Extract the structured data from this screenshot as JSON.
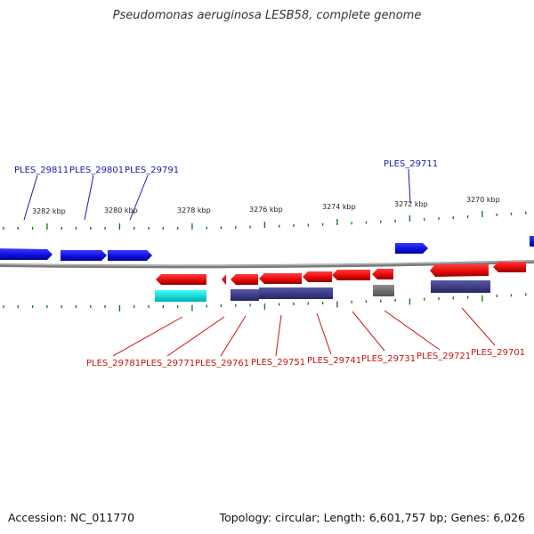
{
  "title": "Pseudomonas aeruginosa LESB58, complete genome",
  "accession": "Accession: NC_011770",
  "topology": "Topology: circular; Length: 6,601,757 bp; Genes: 6,026",
  "scale": {
    "unit": "kbp",
    "labels": [
      "3282 kbp",
      "3280 kbp",
      "3278 kbp",
      "3276 kbp",
      "3274 kbp",
      "3272 kbp",
      "3270 kbp"
    ]
  },
  "colors": {
    "forward_gene": "#1515e0",
    "reverse_gene": "#e01010",
    "backbone": "#8a8a8a",
    "tick": "#1e7a1e",
    "cyan_feature": "#00e5e5",
    "navy_feature": "#3f3f8a",
    "gray_feature": "#707070",
    "top_label": "#1a1aaa",
    "bottom_label": "#cc1111"
  },
  "top_labels": [
    "PLES_29811",
    "PLES_29801",
    "PLES_29791",
    "PLES_29711"
  ],
  "bottom_labels": [
    "PLES_29781",
    "PLES_29771",
    "PLES_29761",
    "PLES_29751",
    "PLES_29741",
    "PLES_29731",
    "PLES_29721",
    "PLES_29701"
  ]
}
